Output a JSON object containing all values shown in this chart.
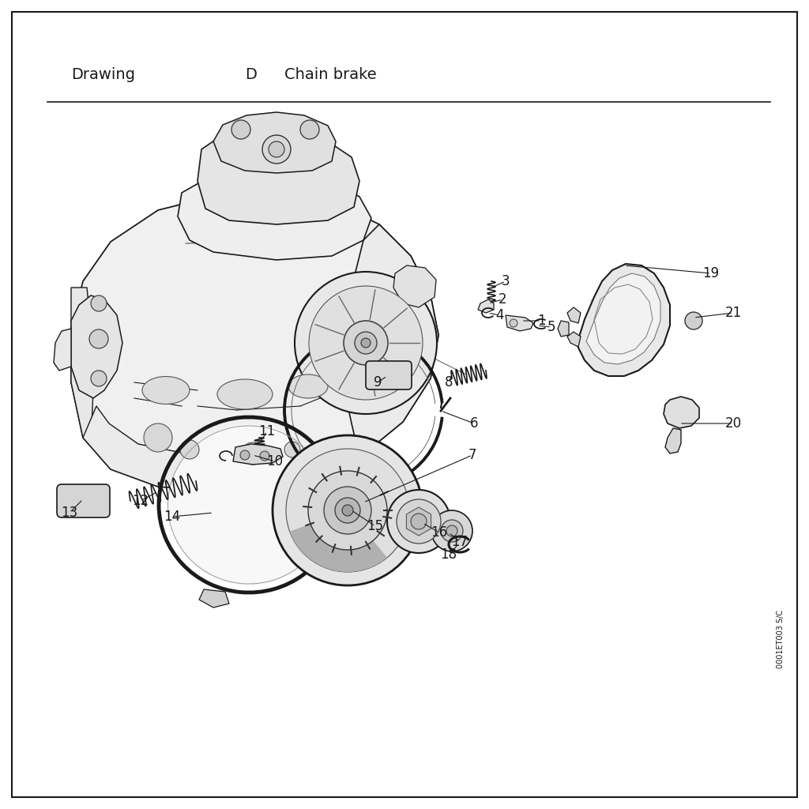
{
  "title_left": "Drawing",
  "title_mid": "D",
  "title_right": "Chain brake",
  "bg_color": "#ffffff",
  "border_color": "#1a1a1a",
  "text_color": "#1a1a1a",
  "footnote": "0001ET003 S/C",
  "header_fontsize": 14,
  "part_num_fontsize": 12
}
